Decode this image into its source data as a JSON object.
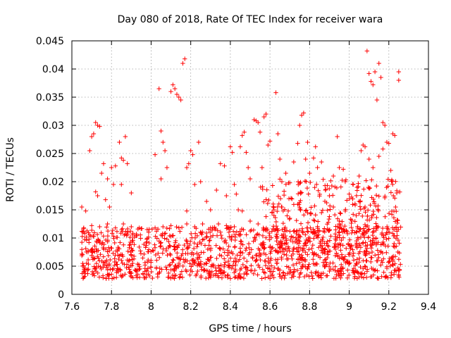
{
  "chart_data": {
    "type": "scatter",
    "title": "Day 080 of 2018, Rate Of TEC Index for receiver wara",
    "xlabel": "GPS time / hours",
    "ylabel": "ROTI / TECUs",
    "xlim": [
      7.6,
      9.4
    ],
    "ylim": [
      0,
      0.045
    ],
    "xticks": [
      "7.6",
      "7.8",
      "8",
      "8.2",
      "8.4",
      "8.6",
      "8.8",
      "9",
      "9.2",
      "9.4"
    ],
    "yticks": [
      "0",
      "0.005",
      "0.01",
      "0.015",
      "0.02",
      "0.025",
      "0.03",
      "0.035",
      "0.04",
      "0.045"
    ],
    "xtick_values": [
      7.6,
      7.8,
      8.0,
      8.2,
      8.4,
      8.6,
      8.8,
      9.0,
      9.2,
      9.4
    ],
    "ytick_values": [
      0,
      0.005,
      0.01,
      0.015,
      0.02,
      0.025,
      0.03,
      0.035,
      0.04,
      0.045
    ],
    "grid": true,
    "marker": "plus",
    "marker_color": "#ff0000",
    "points": [
      [
        7.65,
        0.0155
      ],
      [
        7.67,
        0.0148
      ],
      [
        7.69,
        0.0255
      ],
      [
        7.7,
        0.028
      ],
      [
        7.71,
        0.0285
      ],
      [
        7.72,
        0.0305
      ],
      [
        7.73,
        0.03
      ],
      [
        7.74,
        0.0298
      ],
      [
        7.72,
        0.0182
      ],
      [
        7.73,
        0.0175
      ],
      [
        7.75,
        0.0215
      ],
      [
        7.76,
        0.0232
      ],
      [
        7.77,
        0.0168
      ],
      [
        7.78,
        0.0205
      ],
      [
        7.79,
        0.0155
      ],
      [
        7.8,
        0.0225
      ],
      [
        7.81,
        0.0195
      ],
      [
        7.82,
        0.0228
      ],
      [
        7.84,
        0.027
      ],
      [
        7.85,
        0.0242
      ],
      [
        7.86,
        0.0238
      ],
      [
        7.87,
        0.028
      ],
      [
        7.88,
        0.0232
      ],
      [
        7.85,
        0.0195
      ],
      [
        7.9,
        0.018
      ],
      [
        8.02,
        0.0248
      ],
      [
        8.04,
        0.0365
      ],
      [
        8.05,
        0.029
      ],
      [
        8.06,
        0.027
      ],
      [
        8.07,
        0.0255
      ],
      [
        8.05,
        0.0205
      ],
      [
        8.08,
        0.0225
      ],
      [
        8.1,
        0.036
      ],
      [
        8.11,
        0.0372
      ],
      [
        8.12,
        0.0365
      ],
      [
        8.13,
        0.0355
      ],
      [
        8.14,
        0.035
      ],
      [
        8.15,
        0.0345
      ],
      [
        8.16,
        0.041
      ],
      [
        8.17,
        0.0418
      ],
      [
        8.18,
        0.0225
      ],
      [
        8.19,
        0.0232
      ],
      [
        8.2,
        0.0255
      ],
      [
        8.21,
        0.0248
      ],
      [
        8.22,
        0.0195
      ],
      [
        8.18,
        0.0148
      ],
      [
        8.24,
        0.027
      ],
      [
        8.25,
        0.02
      ],
      [
        8.28,
        0.0165
      ],
      [
        8.3,
        0.015
      ],
      [
        8.33,
        0.0185
      ],
      [
        8.35,
        0.0232
      ],
      [
        8.37,
        0.0228
      ],
      [
        8.38,
        0.0175
      ],
      [
        8.4,
        0.0262
      ],
      [
        8.41,
        0.0252
      ],
      [
        8.42,
        0.0195
      ],
      [
        8.43,
        0.0178
      ],
      [
        8.44,
        0.015
      ],
      [
        8.45,
        0.0262
      ],
      [
        8.46,
        0.0282
      ],
      [
        8.47,
        0.0288
      ],
      [
        8.48,
        0.0252
      ],
      [
        8.49,
        0.0225
      ],
      [
        8.5,
        0.0205
      ],
      [
        8.52,
        0.031
      ],
      [
        8.53,
        0.0308
      ],
      [
        8.54,
        0.0305
      ],
      [
        8.55,
        0.0288
      ],
      [
        8.56,
        0.0225
      ],
      [
        8.57,
        0.0315
      ],
      [
        8.58,
        0.032
      ],
      [
        8.59,
        0.0265
      ],
      [
        8.6,
        0.0272
      ],
      [
        8.61,
        0.0145
      ],
      [
        8.62,
        0.015
      ],
      [
        8.63,
        0.0358
      ],
      [
        8.64,
        0.0285
      ],
      [
        8.65,
        0.024
      ],
      [
        8.66,
        0.02
      ],
      [
        8.68,
        0.0215
      ],
      [
        8.7,
        0.0198
      ],
      [
        8.72,
        0.0235
      ],
      [
        8.74,
        0.0268
      ],
      [
        8.75,
        0.03
      ],
      [
        8.76,
        0.0318
      ],
      [
        8.77,
        0.0322
      ],
      [
        8.78,
        0.024
      ],
      [
        8.79,
        0.027
      ],
      [
        8.8,
        0.0215
      ],
      [
        8.82,
        0.0242
      ],
      [
        8.83,
        0.0262
      ],
      [
        8.84,
        0.0225
      ],
      [
        8.86,
        0.0235
      ],
      [
        8.88,
        0.0185
      ],
      [
        8.9,
        0.0175
      ],
      [
        8.92,
        0.021
      ],
      [
        8.94,
        0.028
      ],
      [
        8.95,
        0.0225
      ],
      [
        8.97,
        0.0222
      ],
      [
        8.98,
        0.02
      ],
      [
        9.0,
        0.0178
      ],
      [
        9.02,
        0.0195
      ],
      [
        9.04,
        0.019
      ],
      [
        9.05,
        0.021
      ],
      [
        9.06,
        0.0255
      ],
      [
        9.07,
        0.0265
      ],
      [
        9.08,
        0.0262
      ],
      [
        9.09,
        0.0432
      ],
      [
        9.1,
        0.0392
      ],
      [
        9.11,
        0.0378
      ],
      [
        9.12,
        0.0372
      ],
      [
        9.13,
        0.0395
      ],
      [
        9.14,
        0.0345
      ],
      [
        9.15,
        0.041
      ],
      [
        9.16,
        0.0385
      ],
      [
        9.17,
        0.0305
      ],
      [
        9.18,
        0.03
      ],
      [
        9.19,
        0.027
      ],
      [
        9.2,
        0.0268
      ],
      [
        9.21,
        0.022
      ],
      [
        9.22,
        0.0285
      ],
      [
        9.23,
        0.0282
      ],
      [
        9.24,
        0.018
      ],
      [
        9.25,
        0.0395
      ],
      [
        9.25,
        0.038
      ],
      [
        9.17,
        0.0258
      ],
      [
        9.15,
        0.0245
      ],
      [
        9.12,
        0.0225
      ],
      [
        9.1,
        0.024
      ],
      [
        9.08,
        0.0155
      ],
      [
        9.05,
        0.0165
      ],
      [
        9.02,
        0.0142
      ],
      [
        8.98,
        0.0148
      ],
      [
        8.95,
        0.013
      ],
      [
        8.92,
        0.0155
      ],
      [
        8.9,
        0.0138
      ],
      [
        8.86,
        0.0145
      ],
      [
        8.82,
        0.0132
      ],
      [
        8.78,
        0.0148
      ],
      [
        8.74,
        0.016
      ],
      [
        8.7,
        0.0135
      ],
      [
        8.66,
        0.0155
      ],
      [
        8.62,
        0.014
      ],
      [
        8.58,
        0.0138
      ],
      [
        8.54,
        0.0125
      ],
      [
        8.5,
        0.013
      ],
      [
        8.46,
        0.0148
      ],
      [
        8.42,
        0.012
      ],
      [
        8.38,
        0.0122
      ],
      [
        8.34,
        0.0125
      ],
      [
        8.3,
        0.0118
      ],
      [
        8.26,
        0.0125
      ],
      [
        8.22,
        0.012
      ],
      [
        8.18,
        0.0125
      ],
      [
        8.14,
        0.0118
      ],
      [
        8.1,
        0.0122
      ],
      [
        8.06,
        0.012
      ],
      [
        8.02,
        0.0118
      ],
      [
        7.98,
        0.0115
      ],
      [
        7.94,
        0.0118
      ],
      [
        7.9,
        0.012
      ],
      [
        7.86,
        0.0125
      ],
      [
        7.82,
        0.0118
      ],
      [
        7.78,
        0.0125
      ],
      [
        7.74,
        0.012
      ],
      [
        7.7,
        0.0122
      ],
      [
        7.66,
        0.0118
      ]
    ]
  }
}
